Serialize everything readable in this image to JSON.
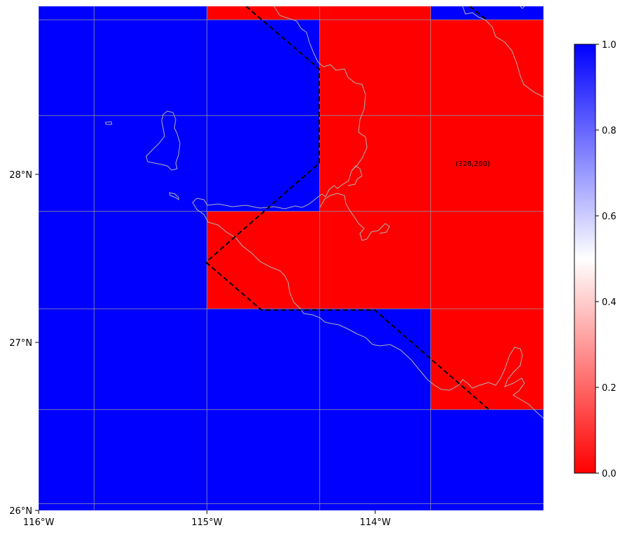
{
  "map": {
    "lon_range": [
      -116.0,
      -113.0
    ],
    "lat_range": [
      26.0,
      29.0
    ],
    "x_ticks": [
      {
        "lon": -116,
        "label": "116°W"
      },
      {
        "lon": -115,
        "label": "115°W"
      },
      {
        "lon": -114,
        "label": "114°W"
      }
    ],
    "y_ticks": [
      {
        "lat": 26,
        "label": "26°N"
      },
      {
        "lat": 27,
        "label": "27°N"
      },
      {
        "lat": 28,
        "label": "28°N"
      }
    ],
    "grid": true,
    "gridline_lons": [
      -115.67,
      -115.0,
      -114.33,
      -113.67
    ],
    "gridline_lats": [
      26.04,
      26.6,
      27.2,
      27.78,
      28.35,
      28.92
    ],
    "cell_value_colors": {
      "0": "#ff0000",
      "1": "#0000ff"
    },
    "background_value": 1,
    "cells": [
      {
        "lon": [
          -115.0,
          -113.67
        ],
        "lat": [
          28.92,
          29.0
        ],
        "value": 0
      },
      {
        "lon": [
          -114.33,
          -113.0
        ],
        "lat": [
          27.78,
          28.92
        ],
        "value": 0
      },
      {
        "lon": [
          -115.0,
          -113.67
        ],
        "lat": [
          27.2,
          27.78
        ],
        "value": 0
      },
      {
        "lon": [
          -113.67,
          -113.0
        ],
        "lat": [
          26.6,
          27.78
        ],
        "value": 0
      }
    ],
    "annotation": "(328,260)",
    "annotation_pos": {
      "lon": -113.42,
      "lat": 28.05
    },
    "coastline_color": "#b0b0b0",
    "boundary_color": "#000000"
  },
  "colorbar": {
    "vmin": 0.0,
    "vmax": 1.0,
    "low_color": "#ff0000",
    "mid_color": "#ffffff",
    "high_color": "#0000ff",
    "ticks": [
      "0.0",
      "0.2",
      "0.4",
      "0.6",
      "0.8",
      "1.0"
    ]
  }
}
